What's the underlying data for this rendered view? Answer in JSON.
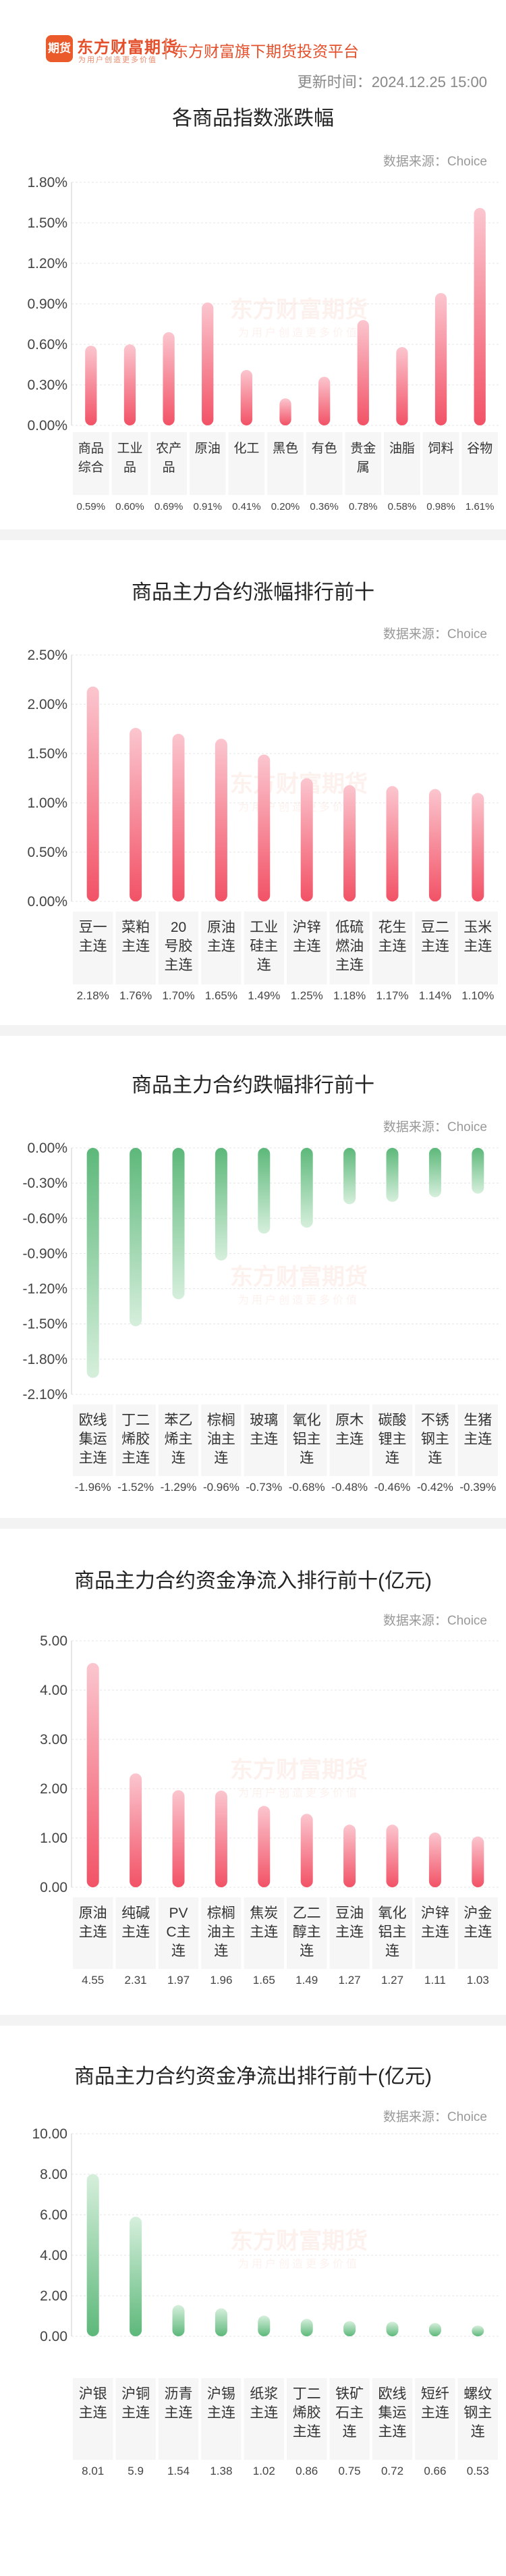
{
  "header": {
    "logo_mark": "期货",
    "logo_name": "东方财富期货",
    "logo_slogan": "为用户创造更多价值",
    "platform": "东方财富旗下期货投资平台",
    "update_time": "更新时间：2024.12.25 15:00"
  },
  "watermark": {
    "name": "东方财富期货",
    "slogan": "为用户创造更多价值"
  },
  "colors": {
    "red": "#f25266",
    "red_light": "#fbc6cf",
    "green": "#5db87a",
    "green_light": "#d6efdc",
    "brand": "#e3502b"
  },
  "chart_data": [
    {
      "type": "bar",
      "title": "各商品指数涨跌幅",
      "source": "数据来源：Choice",
      "color": "red",
      "categories": [
        "商品综合",
        "工业品",
        "农产品",
        "原油",
        "化工",
        "黑色",
        "有色",
        "贵金属",
        "油脂",
        "饲料",
        "谷物"
      ],
      "values": [
        0.59,
        0.6,
        0.69,
        0.91,
        0.41,
        0.2,
        0.36,
        0.78,
        0.58,
        0.98,
        1.61
      ],
      "value_labels": [
        "0.59%",
        "0.60%",
        "0.69%",
        "0.91%",
        "0.41%",
        "0.20%",
        "0.36%",
        "0.78%",
        "0.58%",
        "0.98%",
        "1.61%"
      ],
      "yticks": [
        "1.80%",
        "1.50%",
        "1.20%",
        "0.90%",
        "0.60%",
        "0.30%",
        "0.00%"
      ],
      "ylim": [
        0,
        1.8
      ]
    },
    {
      "type": "bar",
      "title": "商品主力合约涨幅排行前十",
      "source": "数据来源：Choice",
      "color": "red",
      "categories": [
        "豆一主连",
        "菜粕主连",
        "20号胶主连",
        "原油主连",
        "工业硅主连",
        "沪锌主连",
        "低硫燃油主连",
        "花生主连",
        "豆二主连",
        "玉米主连"
      ],
      "values": [
        2.18,
        1.76,
        1.7,
        1.65,
        1.49,
        1.25,
        1.18,
        1.17,
        1.14,
        1.1
      ],
      "value_labels": [
        "2.18%",
        "1.76%",
        "1.70%",
        "1.65%",
        "1.49%",
        "1.25%",
        "1.18%",
        "1.17%",
        "1.14%",
        "1.10%"
      ],
      "yticks": [
        "2.50%",
        "2.00%",
        "1.50%",
        "1.00%",
        "0.50%",
        "0.00%"
      ],
      "ylim": [
        0,
        2.5
      ]
    },
    {
      "type": "bar",
      "title": "商品主力合约跌幅排行前十",
      "source": "数据来源：Choice",
      "color": "green",
      "categories": [
        "欧线集运主连",
        "丁二烯胶主连",
        "苯乙烯主连",
        "棕榈油主连",
        "玻璃主连",
        "氧化铝主连",
        "原木主连",
        "碳酸锂主连",
        "不锈钢主连",
        "生猪主连"
      ],
      "values": [
        -1.96,
        -1.52,
        -1.29,
        -0.96,
        -0.73,
        -0.68,
        -0.48,
        -0.46,
        -0.42,
        -0.39
      ],
      "value_labels": [
        "-1.96%",
        "-1.52%",
        "-1.29%",
        "-0.96%",
        "-0.73%",
        "-0.68%",
        "-0.48%",
        "-0.46%",
        "-0.42%",
        "-0.39%"
      ],
      "yticks": [
        "0.00%",
        "-0.30%",
        "-0.60%",
        "-0.90%",
        "-1.20%",
        "-1.50%",
        "-1.80%",
        "-2.10%"
      ],
      "ylim": [
        -2.1,
        0
      ]
    },
    {
      "type": "bar",
      "title": "商品主力合约资金净流入排行前十(亿元)",
      "source": "数据来源：Choice",
      "color": "red",
      "categories": [
        "原油主连",
        "纯碱主连",
        "PVC主连",
        "棕榈油主连",
        "焦炭主连",
        "乙二醇主连",
        "豆油主连",
        "氧化铝主连",
        "沪锌主连",
        "沪金主连"
      ],
      "values": [
        4.55,
        2.31,
        1.97,
        1.96,
        1.65,
        1.49,
        1.27,
        1.27,
        1.11,
        1.03
      ],
      "value_labels": [
        "4.55",
        "2.31",
        "1.97",
        "1.96",
        "1.65",
        "1.49",
        "1.27",
        "1.27",
        "1.11",
        "1.03"
      ],
      "yticks": [
        "5.00",
        "4.00",
        "3.00",
        "2.00",
        "1.00",
        "0.00"
      ],
      "ylim": [
        0,
        5
      ]
    },
    {
      "type": "bar",
      "title": "商品主力合约资金净流出排行前十(亿元)",
      "source": "数据来源：Choice",
      "color": "green",
      "categories": [
        "沪银主连",
        "沪铜主连",
        "沥青主连",
        "沪锡主连",
        "纸浆主连",
        "丁二烯胶主连",
        "铁矿石主连",
        "欧线集运主连",
        "短纤主连",
        "螺纹钢主连"
      ],
      "values": [
        8.01,
        5.9,
        1.54,
        1.38,
        1.02,
        0.86,
        0.75,
        0.72,
        0.66,
        0.53
      ],
      "value_labels": [
        "8.01",
        "5.9",
        "1.54",
        "1.38",
        "1.02",
        "0.86",
        "0.75",
        "0.72",
        "0.66",
        "0.53"
      ],
      "yticks": [
        "10.00",
        "8.00",
        "6.00",
        "4.00",
        "2.00",
        "0.00"
      ],
      "ylim": [
        0,
        10
      ]
    }
  ]
}
